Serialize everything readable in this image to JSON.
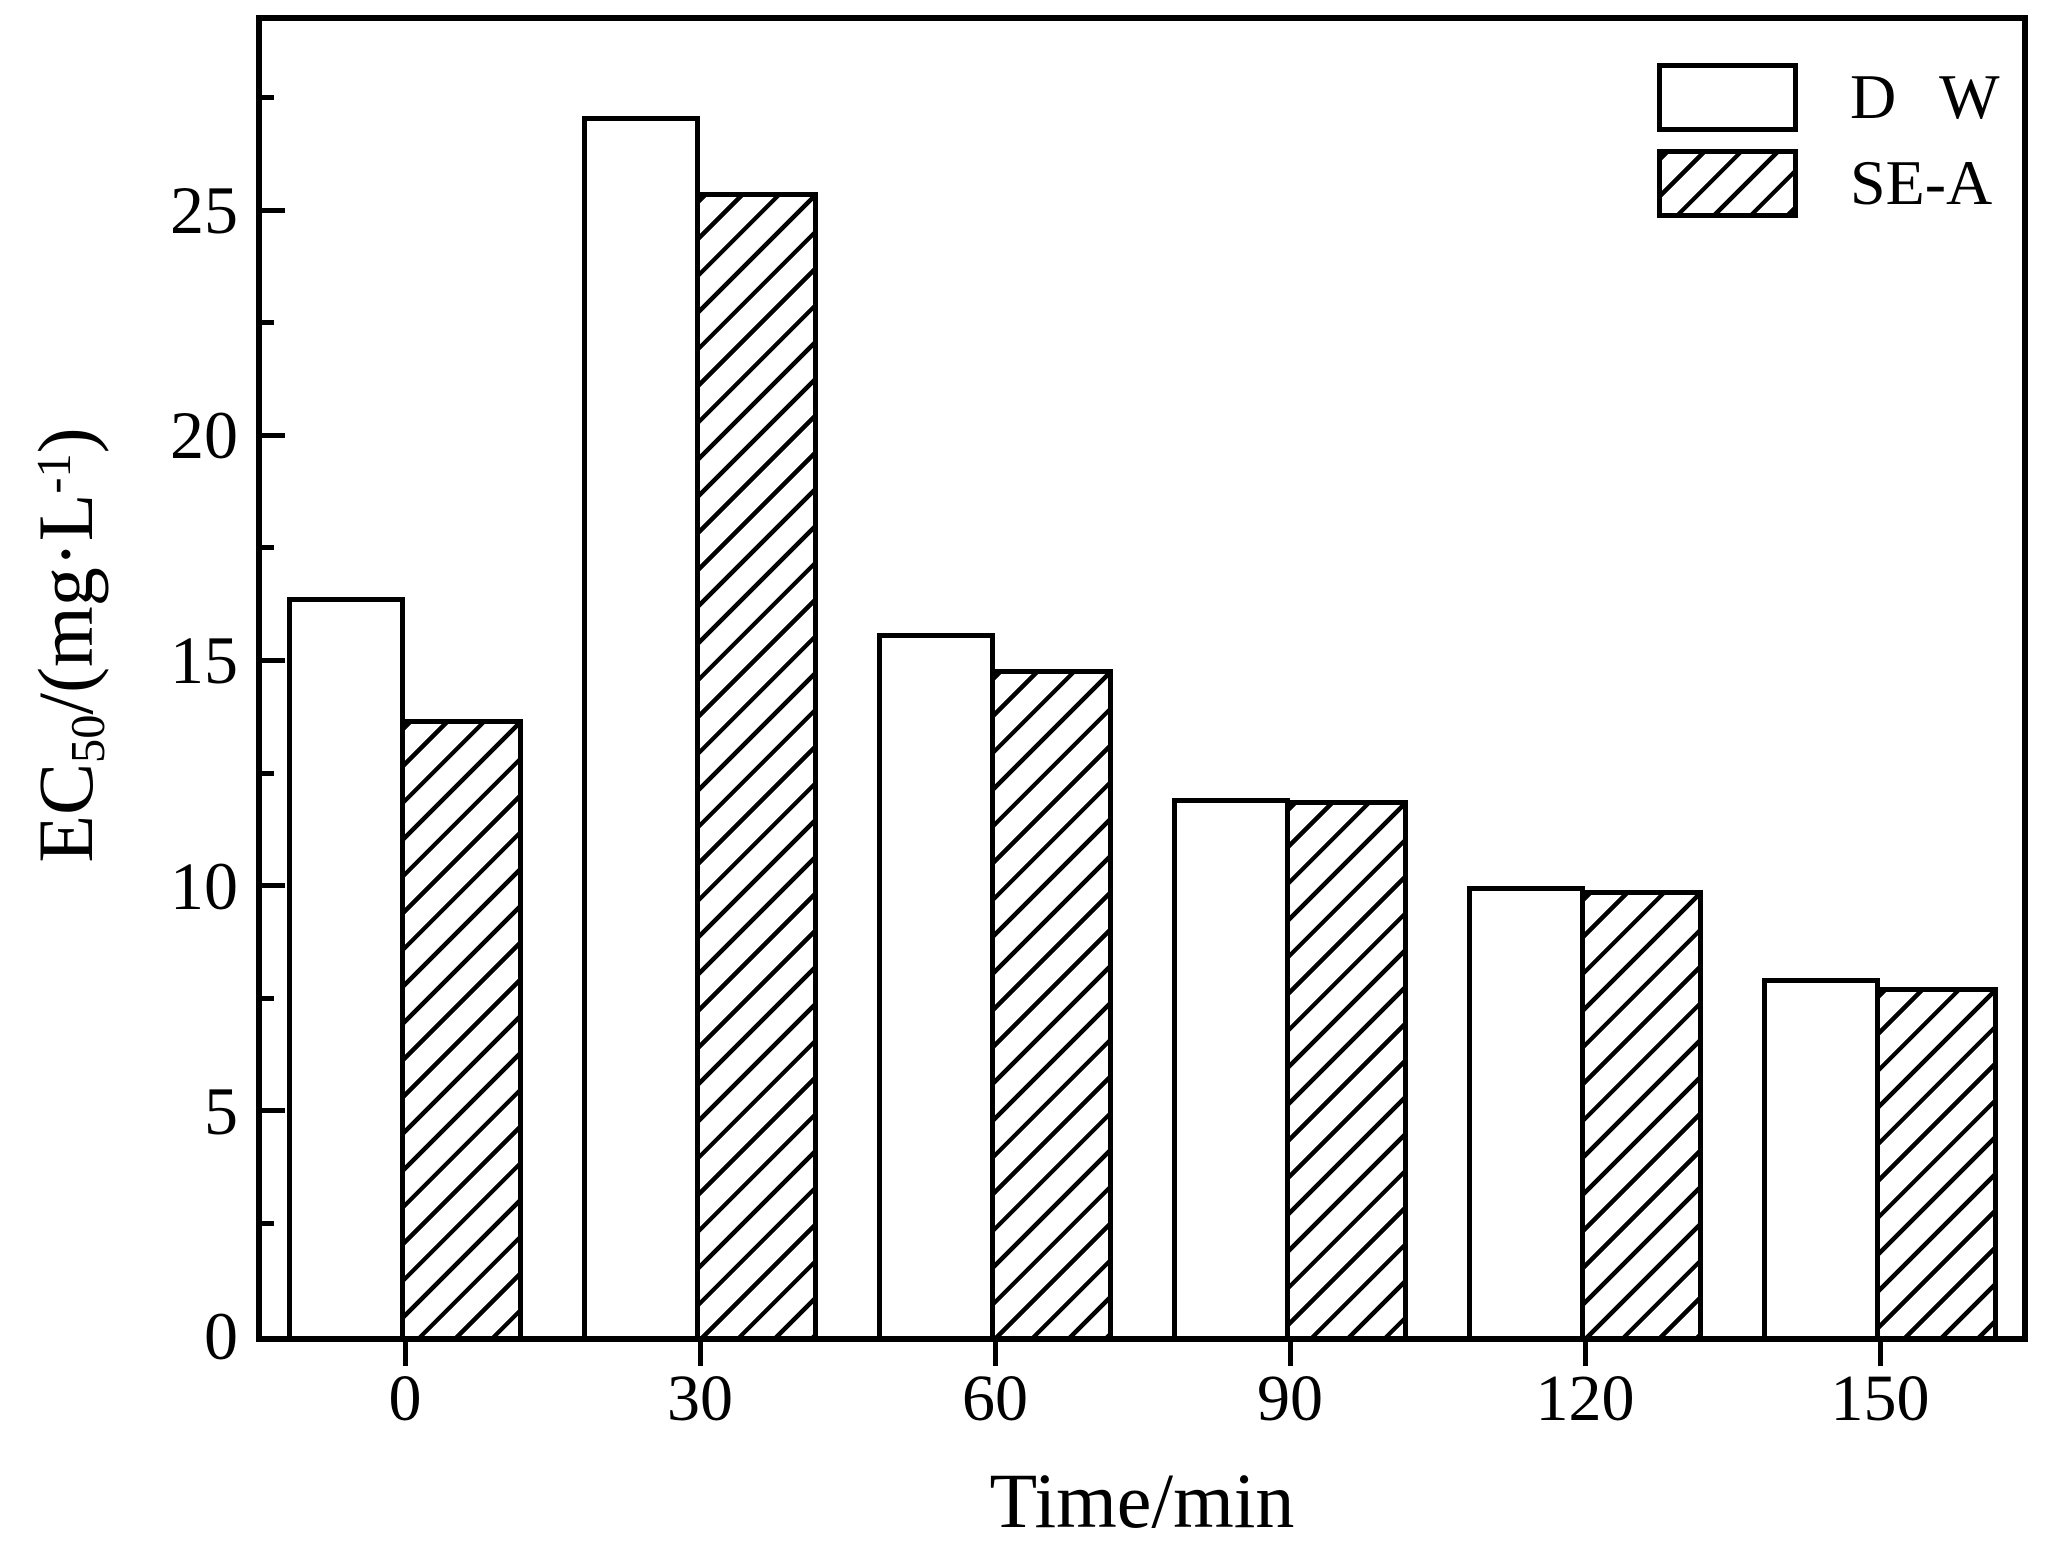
{
  "figure": {
    "background": "#ffffff",
    "foreground": "#000000"
  },
  "chart_data": {
    "type": "bar",
    "title": "",
    "xlabel": "Time/min",
    "ylabel": {
      "base": "EC",
      "sub": "50",
      "mid": "/(mg·L",
      "sup": "-1",
      "end": ")"
    },
    "categories": [
      "0",
      "30",
      "60",
      "90",
      "120",
      "150"
    ],
    "series": [
      {
        "name": "D W",
        "style": "open-white",
        "values": [
          16.4,
          27.1,
          15.6,
          11.95,
          10.0,
          7.95
        ]
      },
      {
        "name": "SE-A",
        "style": "diagonal-hatch",
        "values": [
          13.7,
          25.4,
          14.8,
          11.9,
          9.9,
          7.75
        ]
      }
    ],
    "ylim": [
      0,
      29.2
    ],
    "yticks_major": [
      0,
      5,
      10,
      15,
      20,
      25
    ],
    "yticks_minor": [
      2.5,
      7.5,
      12.5,
      17.5,
      22.5,
      27.5
    ],
    "legend": {
      "position": "top-right",
      "entries": [
        "D W",
        "SE-A"
      ]
    },
    "grid": false
  }
}
